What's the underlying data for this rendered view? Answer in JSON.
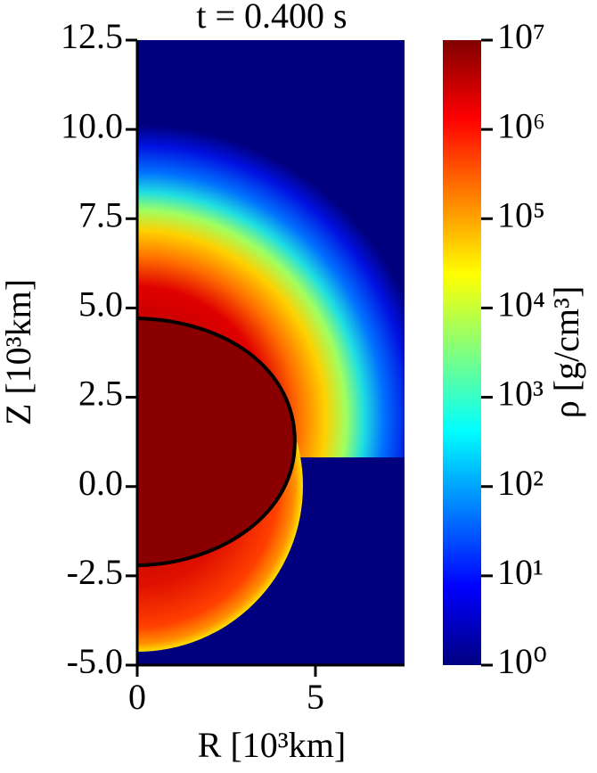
{
  "chart_data": {
    "type": "heatmap",
    "title": "t = 0.400 s",
    "x_label": "R [10³km]",
    "y_label": "Z [10³km]",
    "colorbar_label": "ρ [g/cm³]",
    "xlim": [
      0,
      7.5
    ],
    "xticks": [
      0,
      5
    ],
    "ylim": [
      -5,
      12.5
    ],
    "yticks": [
      {
        "value": -5,
        "label": "-5.0"
      },
      -2.5,
      {
        "value": 0,
        "label": "0.0"
      },
      2.5,
      {
        "value": 5,
        "label": "5.0"
      },
      7.5,
      {
        "value": 10,
        "label": "10.0"
      },
      12.5
    ],
    "colormap": "jet",
    "color_log_scale": true,
    "clim": [
      1,
      10000000
    ],
    "cticks": [
      {
        "value": 1,
        "label": "10⁰"
      },
      {
        "value": 10,
        "label": "10¹"
      },
      {
        "value": 100,
        "label": "10²"
      },
      {
        "value": 1000,
        "label": "10³"
      },
      {
        "value": 10000,
        "label": "10⁴"
      },
      {
        "value": 100000,
        "label": "10⁵"
      },
      {
        "value": 1000000,
        "label": "10⁶"
      },
      {
        "value": 10000000,
        "label": "10⁷"
      }
    ]
  }
}
